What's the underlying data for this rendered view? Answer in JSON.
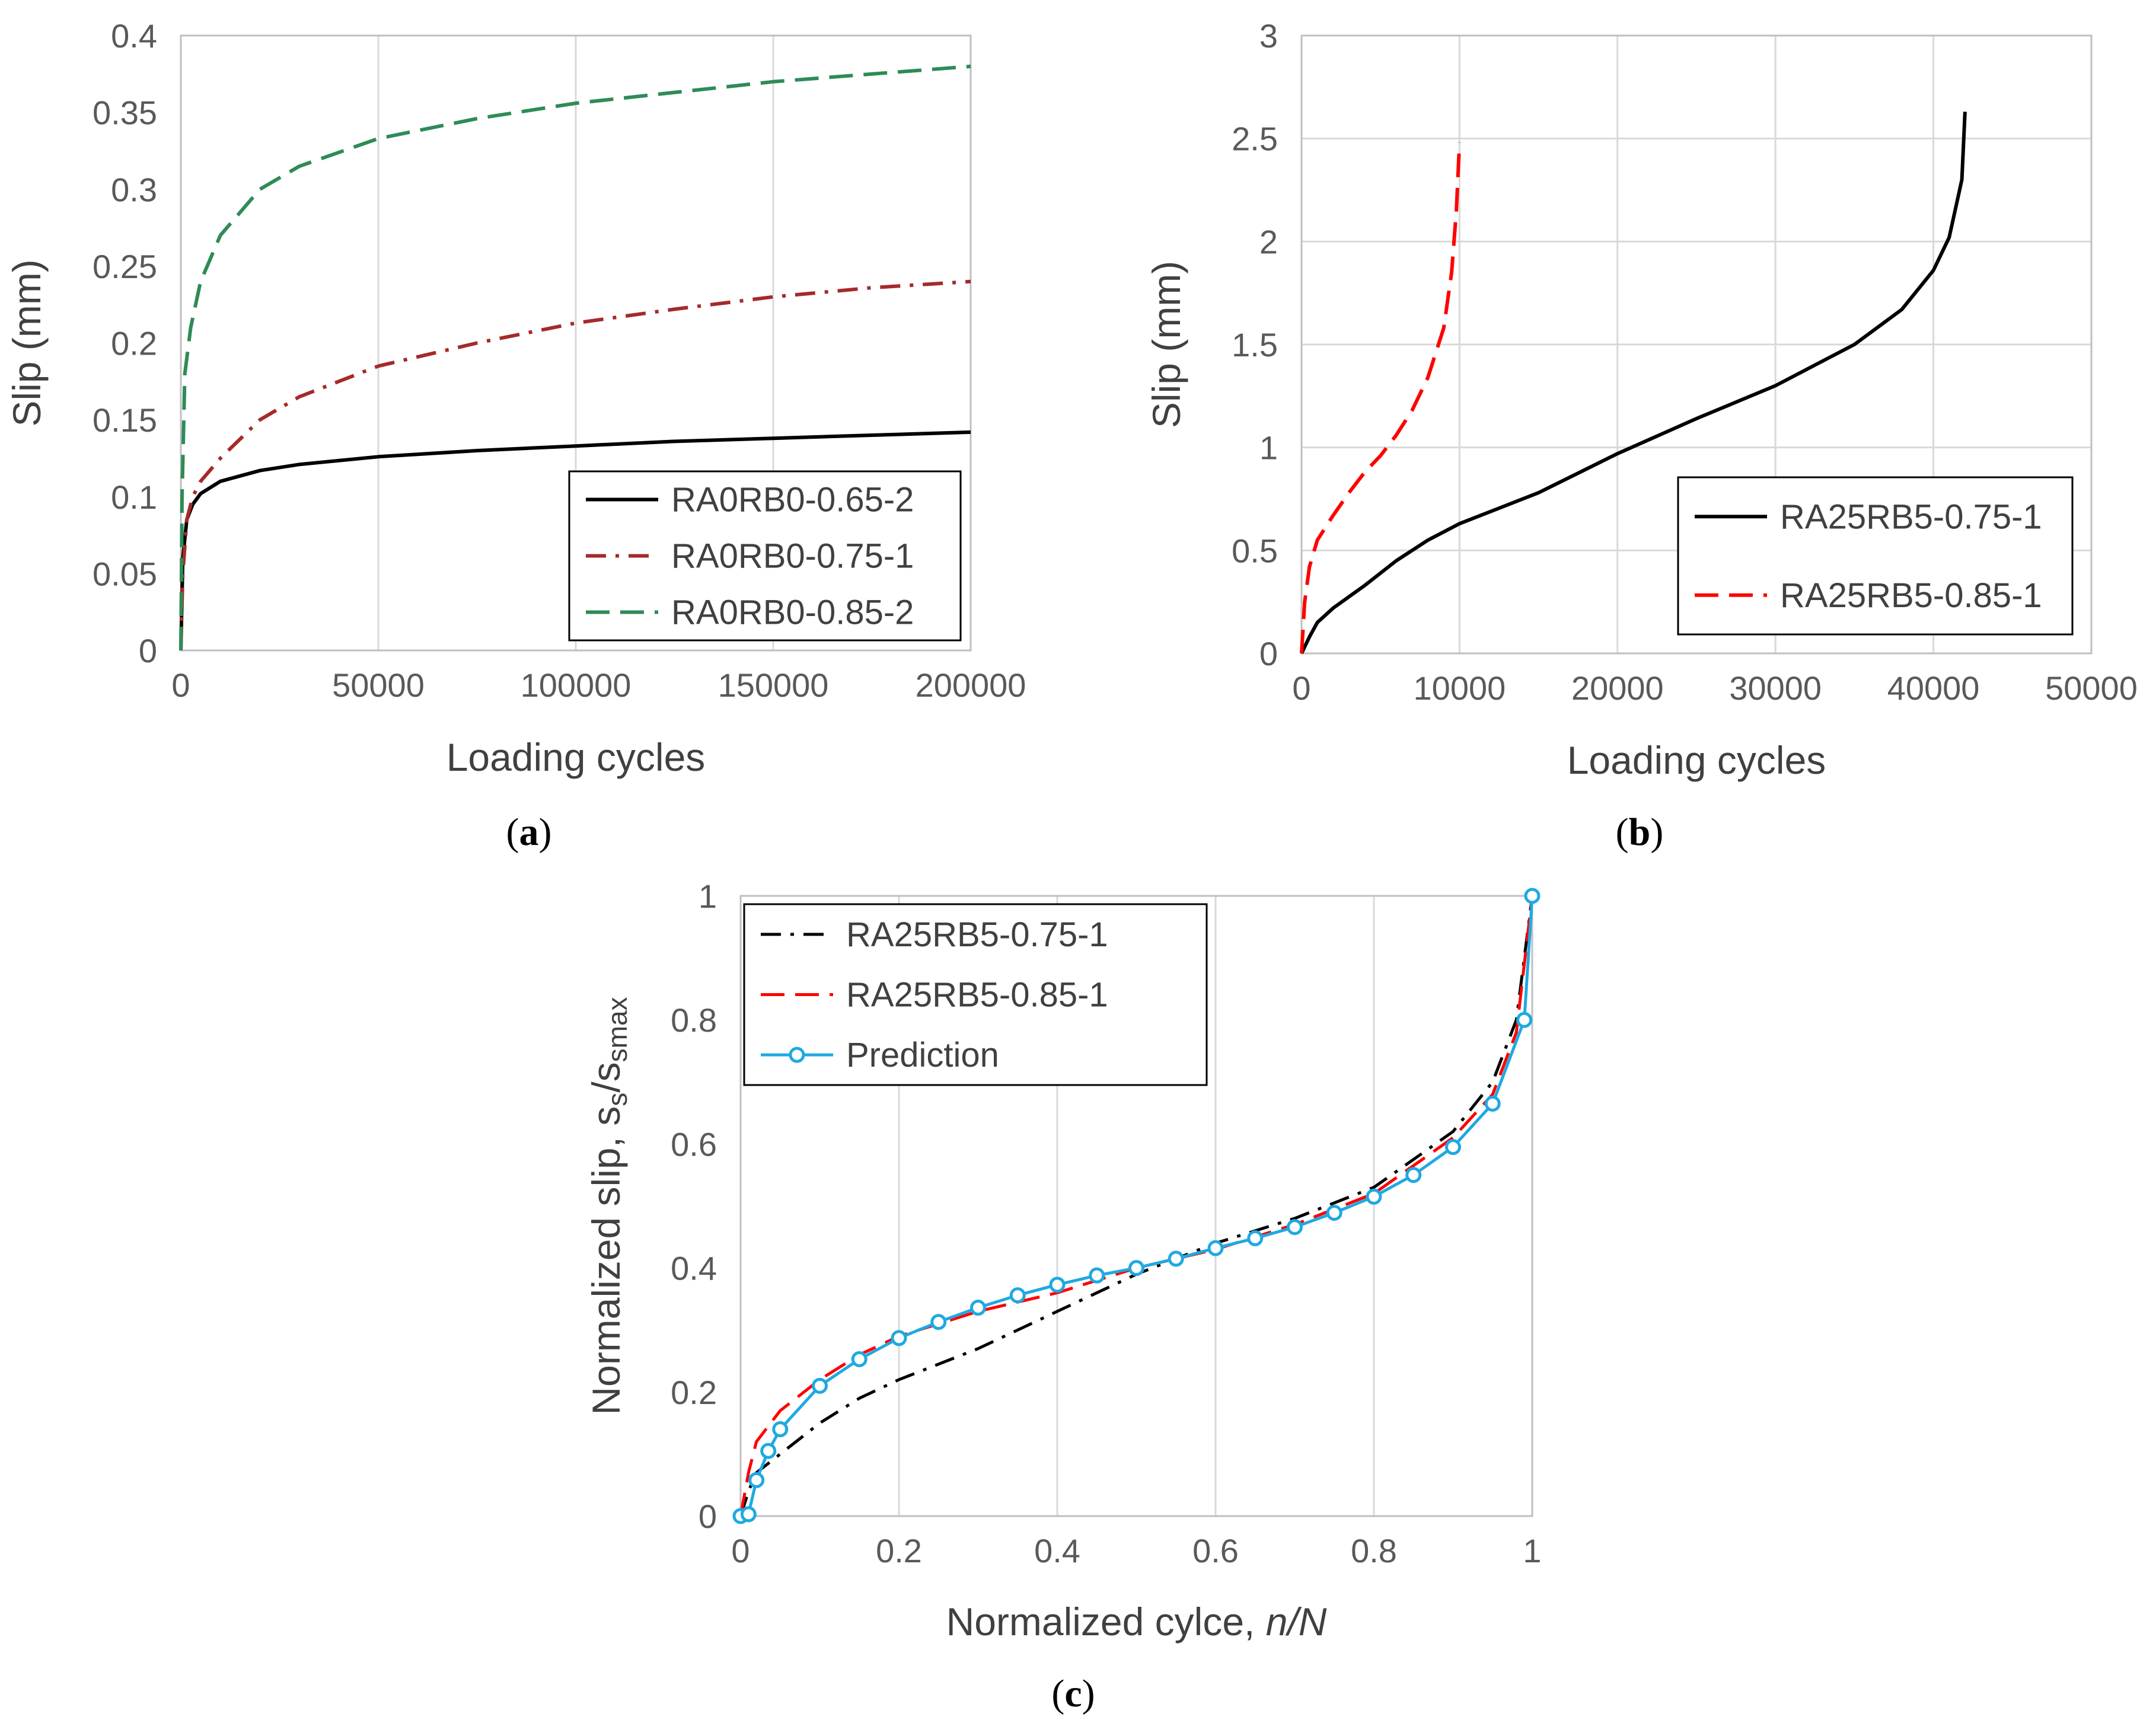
{
  "chart_data": [
    {
      "id": "a",
      "type": "line",
      "panel_label": "a",
      "xlabel": "Loading cycles",
      "ylabel": "Slip (mm)",
      "xlim": [
        0,
        200000
      ],
      "ylim": [
        0,
        0.4
      ],
      "xticks": [
        0,
        50000,
        100000,
        150000,
        200000
      ],
      "yticks": [
        0,
        0.05,
        0.1,
        0.15,
        0.2,
        0.25,
        0.3,
        0.35,
        0.4
      ],
      "ytick_labels": [
        "0",
        "0.05",
        "0.1",
        "0.15",
        "0.2",
        "0.25",
        "0.3",
        "0.35",
        "0.4"
      ],
      "grid": "vertical",
      "legend": "bottom-right",
      "series": [
        {
          "name": "RA0RB0-0.65-2",
          "color": "#000000",
          "dash": "solid",
          "x": [
            0,
            500,
            1500,
            3000,
            5000,
            10000,
            20000,
            30000,
            50000,
            75000,
            100000,
            125000,
            150000,
            175000,
            200000
          ],
          "y": [
            0,
            0.06,
            0.085,
            0.095,
            0.102,
            0.11,
            0.117,
            0.121,
            0.126,
            0.13,
            0.133,
            0.136,
            0.138,
            0.14,
            0.142
          ]
        },
        {
          "name": "RA0RB0-0.75-1",
          "color": "#a52a2a",
          "dash": "dashdot",
          "x": [
            0,
            500,
            1500,
            3000,
            5000,
            10000,
            20000,
            30000,
            50000,
            75000,
            100000,
            125000,
            150000,
            175000,
            200000
          ],
          "y": [
            0,
            0.05,
            0.085,
            0.1,
            0.11,
            0.125,
            0.15,
            0.165,
            0.185,
            0.2,
            0.213,
            0.222,
            0.23,
            0.236,
            0.24
          ]
        },
        {
          "name": "RA0RB0-0.85-2",
          "color": "#2e8b57",
          "dash": "dashed",
          "x": [
            0,
            300,
            1000,
            2500,
            5000,
            10000,
            20000,
            30000,
            50000,
            75000,
            100000,
            125000,
            150000,
            175000,
            200000
          ],
          "y": [
            0,
            0.1,
            0.18,
            0.21,
            0.24,
            0.27,
            0.3,
            0.315,
            0.333,
            0.346,
            0.356,
            0.363,
            0.37,
            0.375,
            0.38
          ]
        }
      ]
    },
    {
      "id": "b",
      "type": "line",
      "panel_label": "b",
      "xlabel": "Loading cycles",
      "ylabel": "Slip (mm)",
      "xlim": [
        0,
        50000
      ],
      "ylim": [
        0,
        3
      ],
      "xticks": [
        0,
        10000,
        20000,
        30000,
        40000,
        50000
      ],
      "yticks": [
        0,
        0.5,
        1,
        1.5,
        2,
        2.5,
        3
      ],
      "ytick_labels": [
        "0",
        "0.5",
        "1",
        "1.5",
        "2",
        "2.5",
        "3"
      ],
      "grid": "both",
      "legend": "right",
      "series": [
        {
          "name": "RA25RB5-0.75-1",
          "color": "#000000",
          "dash": "solid",
          "x": [
            0,
            500,
            1000,
            2000,
            4000,
            6000,
            8000,
            10000,
            15000,
            20000,
            25000,
            30000,
            35000,
            38000,
            40000,
            41000,
            41800,
            42000
          ],
          "y": [
            0,
            0.08,
            0.15,
            0.22,
            0.33,
            0.45,
            0.55,
            0.63,
            0.78,
            0.97,
            1.14,
            1.3,
            1.5,
            1.67,
            1.86,
            2.02,
            2.3,
            2.63
          ]
        },
        {
          "name": "RA25RB5-0.85-1",
          "color": "#ff0000",
          "dash": "dashed",
          "x": [
            0,
            200,
            500,
            1000,
            2000,
            3000,
            4000,
            5000,
            6000,
            7000,
            8000,
            9000,
            9500,
            9800,
            10000
          ],
          "y": [
            0,
            0.25,
            0.42,
            0.55,
            0.67,
            0.78,
            0.88,
            0.96,
            1.06,
            1.18,
            1.34,
            1.58,
            1.85,
            2.15,
            2.48
          ]
        }
      ]
    },
    {
      "id": "c",
      "type": "line",
      "panel_label": "c",
      "xlabel": "Normalized cylce, ",
      "xlabel_italic": "n/N",
      "ylabel": "Normalized slip, s",
      "ylabel_sub1": "s",
      "ylabel_mid": "/s",
      "ylabel_sub2": "smax",
      "xlim": [
        0,
        1
      ],
      "ylim": [
        0,
        1
      ],
      "xticks": [
        0,
        0.2,
        0.4,
        0.6,
        0.8,
        1
      ],
      "xtick_labels": [
        "0",
        "0.2",
        "0.4",
        "0.6",
        "0.8",
        "1"
      ],
      "yticks": [
        0,
        0.2,
        0.4,
        0.6,
        0.8,
        1
      ],
      "ytick_labels": [
        "0",
        "0.2",
        "0.4",
        "0.6",
        "0.8",
        "1"
      ],
      "grid": "vertical",
      "legend": "top-left",
      "series": [
        {
          "name": "RA25RB5-0.75-1",
          "color": "#000000",
          "dash": "dashdot",
          "x": [
            0,
            0.01,
            0.02,
            0.05,
            0.1,
            0.15,
            0.2,
            0.3,
            0.4,
            0.5,
            0.6,
            0.7,
            0.8,
            0.9,
            0.95,
            0.98,
            1.0
          ],
          "y": [
            0,
            0.04,
            0.07,
            0.1,
            0.15,
            0.19,
            0.22,
            0.27,
            0.33,
            0.39,
            0.44,
            0.48,
            0.53,
            0.62,
            0.7,
            0.8,
            1.0
          ]
        },
        {
          "name": "RA25RB5-0.85-1",
          "color": "#ff0000",
          "dash": "dashed",
          "x": [
            0,
            0.01,
            0.02,
            0.05,
            0.1,
            0.15,
            0.2,
            0.3,
            0.4,
            0.5,
            0.6,
            0.7,
            0.8,
            0.9,
            0.95,
            0.98,
            1.0
          ],
          "y": [
            0,
            0.07,
            0.12,
            0.17,
            0.22,
            0.26,
            0.29,
            0.33,
            0.36,
            0.4,
            0.43,
            0.47,
            0.52,
            0.61,
            0.68,
            0.78,
            1.0
          ]
        },
        {
          "name": "Prediction",
          "color": "#1fa9e1",
          "dash": "solid",
          "marker": "circle",
          "x": [
            0,
            0.01,
            0.02,
            0.035,
            0.05,
            0.1,
            0.15,
            0.2,
            0.25,
            0.3,
            0.35,
            0.4,
            0.45,
            0.5,
            0.55,
            0.6,
            0.65,
            0.7,
            0.75,
            0.8,
            0.85,
            0.9,
            0.95,
            0.99,
            1.0
          ],
          "y": [
            0,
            0.003,
            0.058,
            0.105,
            0.14,
            0.21,
            0.253,
            0.287,
            0.313,
            0.336,
            0.356,
            0.373,
            0.388,
            0.4,
            0.415,
            0.432,
            0.448,
            0.466,
            0.489,
            0.515,
            0.55,
            0.595,
            0.665,
            0.8,
            1.0
          ]
        }
      ]
    }
  ]
}
